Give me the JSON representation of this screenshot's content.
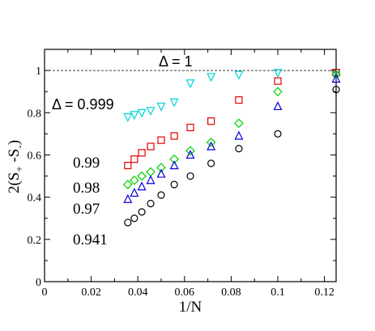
{
  "chart_data": {
    "type": "scatter",
    "xlabel": "1/N",
    "ylabel": "2(S+ -S-)",
    "ylabel_parts": {
      "main": "2(S",
      "sub1": "+",
      "mid": " -S",
      "sub2": "-",
      "end": ")"
    },
    "xlim": [
      0,
      0.125
    ],
    "ylim": [
      0,
      1.1
    ],
    "x_ticks": [
      0,
      0.02,
      0.04,
      0.06,
      0.08,
      0.1,
      0.12
    ],
    "x_tick_labels": [
      "0",
      "0.02",
      "0.04",
      "0.06",
      "0.08",
      "0.1",
      "0.12"
    ],
    "y_ticks": [
      0,
      0.2,
      0.4,
      0.6,
      0.8,
      1
    ],
    "y_tick_labels": [
      "0",
      "0.2",
      "0.4",
      "0.6",
      "0.8",
      "1"
    ],
    "reference_line": {
      "y": 1,
      "style": "dashed",
      "label": "Δ = 1"
    },
    "grid": false,
    "series": [
      {
        "name": "Δ = 0.999",
        "marker": "triangle-down",
        "color": "#00d5d5",
        "x": [
          0.0357,
          0.0385,
          0.0417,
          0.0455,
          0.05,
          0.0556,
          0.0625,
          0.0714,
          0.0833,
          0.1,
          0.125
        ],
        "y": [
          0.78,
          0.79,
          0.8,
          0.81,
          0.83,
          0.85,
          0.94,
          0.97,
          0.98,
          0.99,
          0.99
        ]
      },
      {
        "name": "0.99",
        "marker": "square",
        "color": "#e00000",
        "x": [
          0.0357,
          0.0385,
          0.0417,
          0.0455,
          0.05,
          0.0556,
          0.0625,
          0.0714,
          0.0833,
          0.1,
          0.125
        ],
        "y": [
          0.55,
          0.58,
          0.61,
          0.64,
          0.67,
          0.69,
          0.73,
          0.76,
          0.86,
          0.95,
          0.99
        ]
      },
      {
        "name": "0.98",
        "marker": "diamond",
        "color": "#00d000",
        "x": [
          0.0357,
          0.0385,
          0.0417,
          0.0455,
          0.05,
          0.0556,
          0.0625,
          0.0714,
          0.0833,
          0.1,
          0.125
        ],
        "y": [
          0.46,
          0.48,
          0.5,
          0.52,
          0.54,
          0.58,
          0.62,
          0.66,
          0.75,
          0.9,
          0.98
        ]
      },
      {
        "name": "0.97",
        "marker": "triangle-up",
        "color": "#0000e0",
        "x": [
          0.0357,
          0.0385,
          0.0417,
          0.0455,
          0.05,
          0.0556,
          0.0625,
          0.0714,
          0.0833,
          0.1,
          0.125
        ],
        "y": [
          0.39,
          0.42,
          0.45,
          0.48,
          0.51,
          0.55,
          0.6,
          0.64,
          0.69,
          0.83,
          0.96
        ]
      },
      {
        "name": "0.941",
        "marker": "circle",
        "color": "#000000",
        "x": [
          0.0357,
          0.0385,
          0.0417,
          0.0455,
          0.05,
          0.0556,
          0.0625,
          0.0714,
          0.0833,
          0.1,
          0.125
        ],
        "y": [
          0.28,
          0.3,
          0.33,
          0.37,
          0.41,
          0.46,
          0.5,
          0.56,
          0.63,
          0.7,
          0.91
        ]
      }
    ]
  }
}
